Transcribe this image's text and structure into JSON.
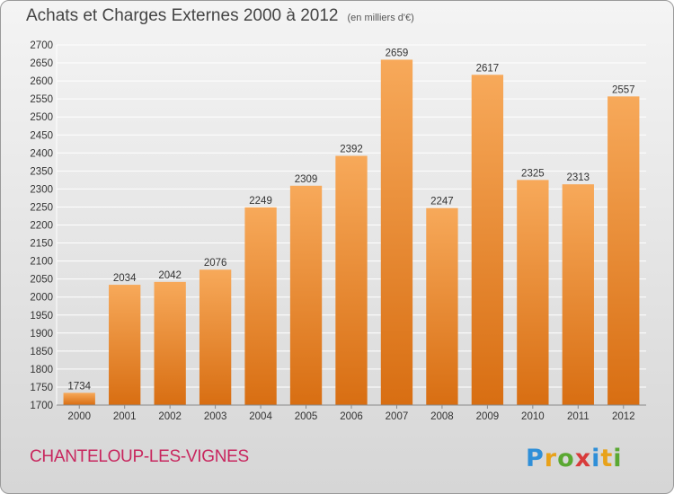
{
  "header": {
    "title": "Achats et Charges Externes 2000 à 2012",
    "unit": "(en milliers d'€)"
  },
  "footer": {
    "place": "CHANTELOUP-LES-VIGNES",
    "logo_text": "Proxiti"
  },
  "colors": {
    "bar_light": "#f7a95a",
    "bar_dark": "#d86e12",
    "grid": "#ffffff",
    "place_text": "#c8265e"
  },
  "chart_data": {
    "type": "bar",
    "title": "Achats et Charges Externes 2000 à 2012",
    "subtitle": "(en milliers d'€)",
    "categories": [
      "2000",
      "2001",
      "2002",
      "2003",
      "2004",
      "2005",
      "2006",
      "2007",
      "2008",
      "2009",
      "2010",
      "2011",
      "2012"
    ],
    "values": [
      1734,
      2034,
      2042,
      2076,
      2249,
      2309,
      2392,
      2659,
      2247,
      2617,
      2325,
      2313,
      2557
    ],
    "ylim": [
      1700,
      2700
    ],
    "ytick_step": 50,
    "grid": true,
    "data_labels": true
  }
}
